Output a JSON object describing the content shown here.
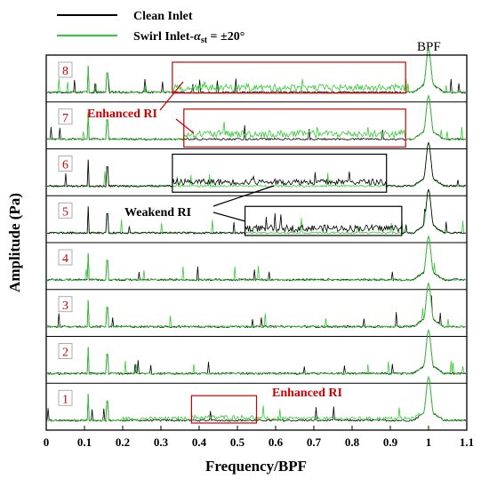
{
  "chart_data": {
    "type": "line",
    "title": "",
    "xlabel": "Frequency/BPF",
    "ylabel": "Amplitude (Pa)",
    "xlim": [
      0,
      1.1
    ],
    "x_ticks": [
      "0",
      "0.1",
      "0.2",
      "0.3",
      "0.4",
      "0.5",
      "0.6",
      "0.7",
      "0.8",
      "0.9",
      "1",
      "1.1"
    ],
    "x_tick_values": [
      0,
      0.1,
      0.2,
      0.3,
      0.4,
      0.5,
      0.6,
      0.7,
      0.8,
      0.9,
      1.0,
      1.1
    ],
    "legend_placement": "top-left",
    "series": [
      {
        "name": "Clean Inlet",
        "color": "#000000"
      },
      {
        "name": "Swirl Inlet-αst = ±20°",
        "color": "#33cc33"
      }
    ],
    "legend_main": "Swirl Inlet-",
    "legend_alpha": "α",
    "legend_sub": "st",
    "legend_tail": " = ±20°",
    "channels": [
      "1",
      "2",
      "3",
      "4",
      "5",
      "6",
      "7",
      "8"
    ],
    "peaks": [
      0.11,
      0.16,
      1.0
    ],
    "peak_label": "BPF",
    "annotations": [
      {
        "text": "Enhanced RI",
        "color": "#d00000",
        "channel": "8",
        "box_x": [
          0.33,
          0.94
        ]
      },
      {
        "text": "Enhanced RI",
        "color": "#d00000",
        "channel": "7",
        "box_x": [
          0.36,
          0.94
        ]
      },
      {
        "text": "Weakend RI",
        "color": "#000000",
        "channel": "6",
        "box_x": [
          0.33,
          0.89
        ]
      },
      {
        "text": "Weakend RI",
        "color": "#000000",
        "channel": "5",
        "box_x": [
          0.52,
          0.93
        ]
      },
      {
        "text": "Enhanced RI",
        "color": "#d00000",
        "channel": "1",
        "box_x": [
          0.38,
          0.55
        ]
      }
    ],
    "labels": {
      "enhanced_top": "Enhanced RI",
      "weakend": "Weakend RI",
      "enhanced_bottom": "Enhanced RI"
    }
  }
}
